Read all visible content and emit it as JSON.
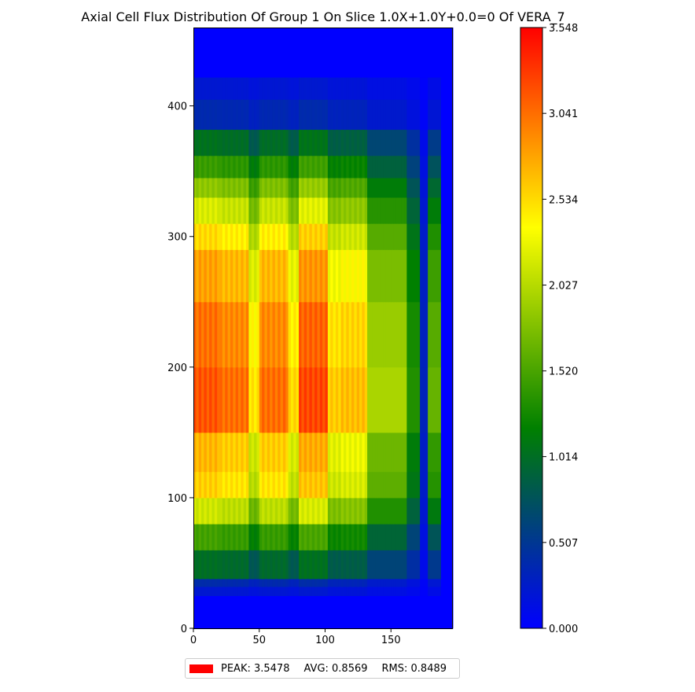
{
  "chart_data": {
    "type": "heatmap",
    "title": "Axial Cell Flux Distribution Of Group 1 On Slice 1.0X+1.0Y+0.0=0 Of VERA_7",
    "xlabel": "",
    "ylabel": "",
    "xlim": [
      0,
      197
    ],
    "ylim": [
      0,
      460
    ],
    "x_ticks": [
      "0",
      "50",
      "100",
      "150"
    ],
    "x_tick_values": [
      0,
      50,
      100,
      150
    ],
    "y_ticks": [
      "0",
      "100",
      "200",
      "300",
      "400"
    ],
    "y_tick_values": [
      0,
      100,
      200,
      300,
      400
    ],
    "colorbar": {
      "min": 0.0,
      "max": 3.548,
      "tick_labels": [
        "0.000",
        "0.507",
        "1.014",
        "1.520",
        "2.027",
        "2.534",
        "3.041",
        "3.548"
      ],
      "tick_values": [
        0.0,
        0.507,
        1.014,
        1.52,
        2.027,
        2.534,
        3.041,
        3.548
      ],
      "colors": [
        "#0000ff",
        "#008000",
        "#ffff00",
        "#ff0000"
      ]
    },
    "x_segments": [
      {
        "x0": 0,
        "x1": 132,
        "weight": 1.0
      },
      {
        "x0": 132,
        "x1": 162,
        "weight": 0.62
      },
      {
        "x0": 162,
        "x1": 172,
        "weight": 0.42
      },
      {
        "x0": 172,
        "x1": 178,
        "weight": 0.1
      },
      {
        "x0": 178,
        "x1": 188,
        "weight": 0.52
      },
      {
        "x0": 188,
        "x1": 197,
        "weight": 0.0
      }
    ],
    "assembly_modulation": [
      {
        "x0": 0,
        "x1": 20,
        "factor": 1.02
      },
      {
        "x0": 20,
        "x1": 42,
        "factor": 0.98
      },
      {
        "x0": 42,
        "x1": 50,
        "factor": 0.8
      },
      {
        "x0": 50,
        "x1": 72,
        "factor": 0.98
      },
      {
        "x0": 72,
        "x1": 80,
        "factor": 0.82
      },
      {
        "x0": 80,
        "x1": 102,
        "factor": 1.04
      },
      {
        "x0": 102,
        "x1": 112,
        "factor": 0.84
      },
      {
        "x0": 112,
        "x1": 132,
        "factor": 0.86
      }
    ],
    "axial_bands": [
      {
        "y0": 0,
        "y1": 25,
        "value": 0.0
      },
      {
        "y0": 25,
        "y1": 32,
        "value": 0.22
      },
      {
        "y0": 32,
        "y1": 38,
        "value": 0.4
      },
      {
        "y0": 38,
        "y1": 60,
        "value": 1.02
      },
      {
        "y0": 60,
        "y1": 80,
        "value": 1.5
      },
      {
        "y0": 80,
        "y1": 100,
        "value": 2.15
      },
      {
        "y0": 100,
        "y1": 120,
        "value": 2.6
      },
      {
        "y0": 120,
        "y1": 150,
        "value": 2.72
      },
      {
        "y0": 150,
        "y1": 200,
        "value": 3.18
      },
      {
        "y0": 200,
        "y1": 250,
        "value": 3.05
      },
      {
        "y0": 250,
        "y1": 290,
        "value": 2.82
      },
      {
        "y0": 290,
        "y1": 310,
        "value": 2.55
      },
      {
        "y0": 310,
        "y1": 330,
        "value": 2.2
      },
      {
        "y0": 330,
        "y1": 345,
        "value": 1.85
      },
      {
        "y0": 345,
        "y1": 362,
        "value": 1.45
      },
      {
        "y0": 362,
        "y1": 382,
        "value": 1.05
      },
      {
        "y0": 382,
        "y1": 405,
        "value": 0.38
      },
      {
        "y0": 405,
        "y1": 422,
        "value": 0.22
      },
      {
        "y0": 422,
        "y1": 460,
        "value": 0.0
      }
    ],
    "summary": {
      "peak_label": "PEAK: 3.5478",
      "avg_label": "AVG: 0.8569",
      "rms_label": "RMS: 0.8489",
      "peak": 3.5478,
      "avg": 0.8569,
      "rms": 0.8489,
      "swatch_color": "#ff0000"
    }
  }
}
